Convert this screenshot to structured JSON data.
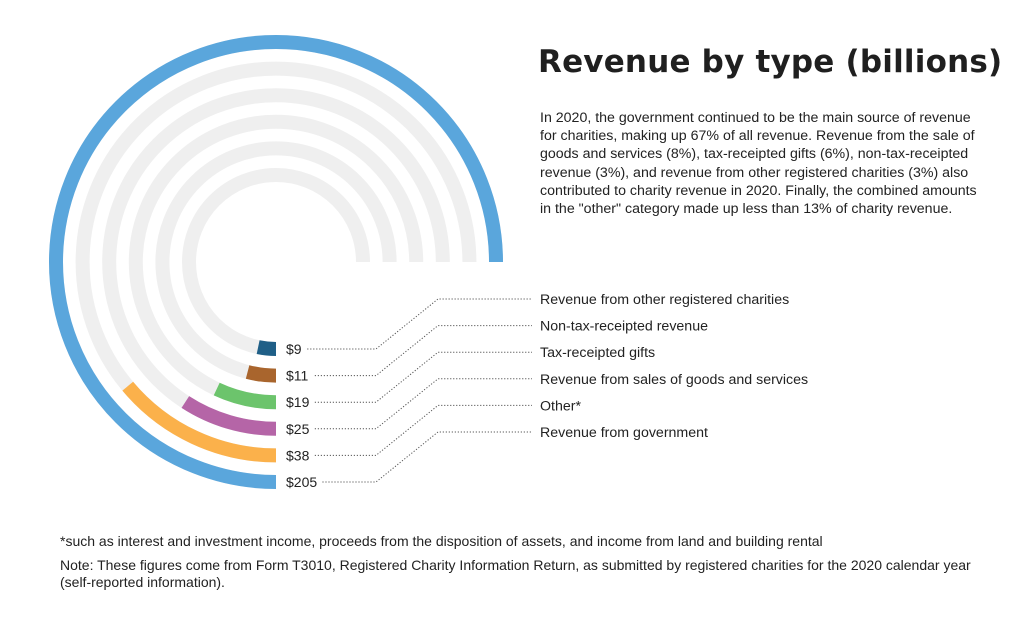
{
  "title": "Revenue by type (billions)",
  "description": "In 2020, the government continued to be the main source of revenue for charities, making up 67% of all revenue. Revenue from the sale of goods and services (8%), tax-receipted gifts (6%), non-tax-receipted revenue (3%), and revenue from other registered charities (3%) also contributed to charity revenue in 2020. Finally, the combined amounts in the \"other\" category made up less than 13% of charity revenue.",
  "footnote": "*such as interest and investment income, proceeds from the disposition of assets, and income from land and building rental",
  "note": "Note: These figures come from Form T3010, Registered Charity Information Return, as submitted by registered charities for the 2020 calendar year (self-reported information).",
  "chart_data": {
    "type": "radial-bar",
    "unit": "billions",
    "max_value": 205,
    "track_color": "#efefef",
    "series": [
      {
        "name": "Revenue from government",
        "value": 205,
        "value_label": "$205",
        "color": "#5aa6dc"
      },
      {
        "name": "Other*",
        "value": 38,
        "value_label": "$38",
        "color": "#fbb14b"
      },
      {
        "name": "Revenue from sales of goods and services",
        "value": 25,
        "value_label": "$25",
        "color": "#b565a7"
      },
      {
        "name": "Tax-receipted gifts",
        "value": 19,
        "value_label": "$19",
        "color": "#6cc46c"
      },
      {
        "name": "Non-tax-receipted revenue",
        "value": 11,
        "value_label": "$11",
        "color": "#a9652d"
      },
      {
        "name": "Revenue from other registered charities",
        "value": 9,
        "value_label": "$9",
        "color": "#1f5f87"
      }
    ],
    "legend_order": [
      "Revenue from other registered charities",
      "Non-tax-receipted revenue",
      "Tax-receipted gifts",
      "Revenue from sales of goods and services",
      "Other*",
      "Revenue from government"
    ]
  }
}
